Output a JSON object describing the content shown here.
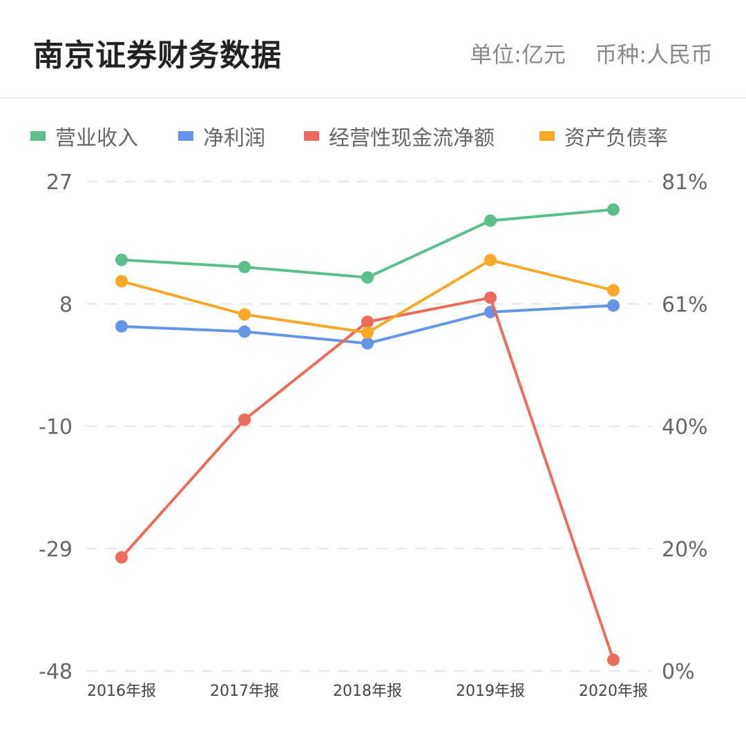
{
  "header": {
    "title": "南京证券财务数据",
    "unit_label": "单位:亿元",
    "currency_label": "币种:人民币"
  },
  "colors": {
    "grid": "#e6e6e6",
    "axis_text": "#666666"
  },
  "chart_data": {
    "type": "line",
    "categories": [
      "2016年报",
      "2017年报",
      "2018年报",
      "2019年报",
      "2020年报"
    ],
    "y_left": {
      "ticks": [
        "27",
        "8",
        "-10",
        "-29",
        "-48"
      ],
      "ylim": [
        -48,
        27
      ]
    },
    "y_right": {
      "ticks": [
        "81%",
        "61%",
        "40%",
        "20%",
        "0%"
      ],
      "ylim": [
        0,
        81
      ]
    },
    "grid": true,
    "legend_position": "top",
    "series": [
      {
        "name": "营业收入",
        "axis": "left",
        "color": "#5bbf8a",
        "values": [
          15.0,
          13.9,
          12.3,
          21.0,
          22.7
        ]
      },
      {
        "name": "净利润",
        "axis": "left",
        "color": "#6495e6",
        "values": [
          4.8,
          4.0,
          2.2,
          7.0,
          8.0
        ]
      },
      {
        "name": "经营性现金流净额",
        "axis": "left",
        "color": "#ee6b5c",
        "values": [
          -30.6,
          -9.5,
          5.5,
          9.2,
          -46.3
        ]
      },
      {
        "name": "资产负债率",
        "axis": "right",
        "color": "#f9a825",
        "percent": true,
        "values": [
          64.5,
          59.0,
          56.0,
          68.0,
          63.0
        ]
      }
    ]
  }
}
